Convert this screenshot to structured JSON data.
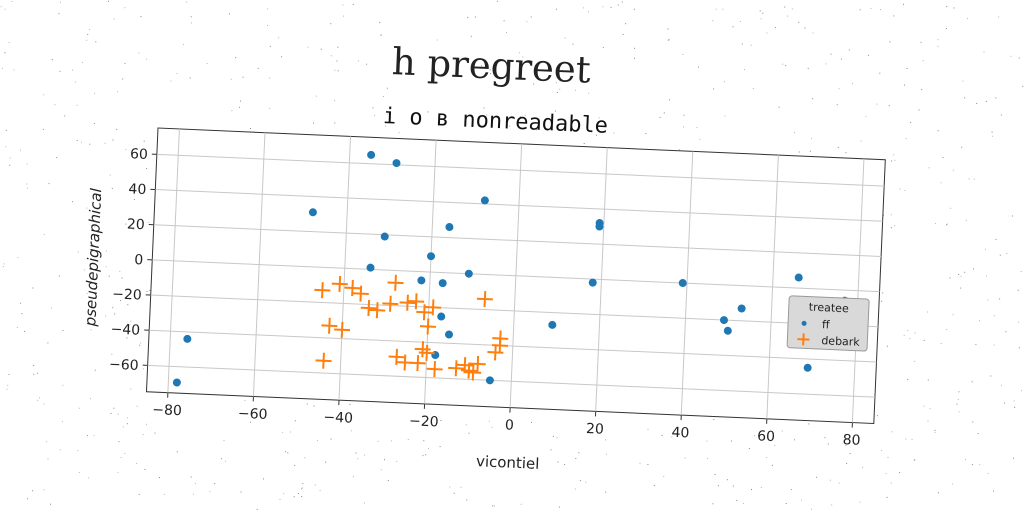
{
  "figure": {
    "title": "h pregreet",
    "subtitle": "i o в nonreadable"
  },
  "chart_data": {
    "type": "scatter",
    "title": "i o в nonreadable",
    "xlabel": "vicontiel",
    "ylabel": "pseudepigraphical",
    "xlim": [
      -85,
      85
    ],
    "ylim": [
      -75,
      75
    ],
    "xticks": [
      -80,
      -60,
      -40,
      -20,
      0,
      20,
      40,
      60,
      80
    ],
    "yticks": [
      -60,
      -40,
      -20,
      0,
      20,
      40,
      60
    ],
    "grid": true,
    "legend": {
      "title": "treatee",
      "placement": "right",
      "entries": [
        "ff",
        "debark"
      ]
    },
    "colors": {
      "ff": "#1f77b4",
      "debark": "#ff7f0e"
    },
    "series": [
      {
        "name": "ff",
        "marker": "circle",
        "x": [
          -35,
          -29,
          -48,
          -31,
          -8,
          -16,
          -20,
          -34,
          -22,
          -17,
          -11,
          -17,
          -15,
          -18,
          -5,
          19,
          19,
          9,
          18,
          39,
          49,
          50,
          53,
          66,
          77,
          -76,
          -78,
          69
        ],
        "y": [
          65,
          61,
          31,
          19,
          42,
          26,
          9,
          1,
          -5,
          -6,
          0,
          -25,
          -35,
          -47,
          -60,
          32,
          30,
          -27,
          -2,
          0,
          -20,
          -26,
          -13,
          6,
          -6,
          -44,
          -69,
          -45
        ]
      },
      {
        "name": "debark",
        "marker": "plus",
        "x": [
          -45,
          -41,
          -38,
          -36,
          -34,
          -32,
          -29,
          -28,
          -25,
          -23,
          -21,
          -19,
          -20,
          -43,
          -40,
          -27,
          -25,
          -22,
          -21,
          -20,
          -18,
          -13,
          -11,
          -10,
          -9,
          -8,
          -3,
          -3,
          -4,
          -7,
          -44
        ],
        "y": [
          -13,
          -9,
          -11,
          -14,
          -22,
          -23,
          -19,
          -7,
          -18,
          -17,
          -23,
          -20,
          -31,
          -33,
          -35,
          -49,
          -52,
          -52,
          -44,
          -46,
          -55,
          -54,
          -52,
          -55,
          -56,
          -51,
          -40,
          -36,
          -44,
          -14,
          -53
        ]
      }
    ]
  }
}
